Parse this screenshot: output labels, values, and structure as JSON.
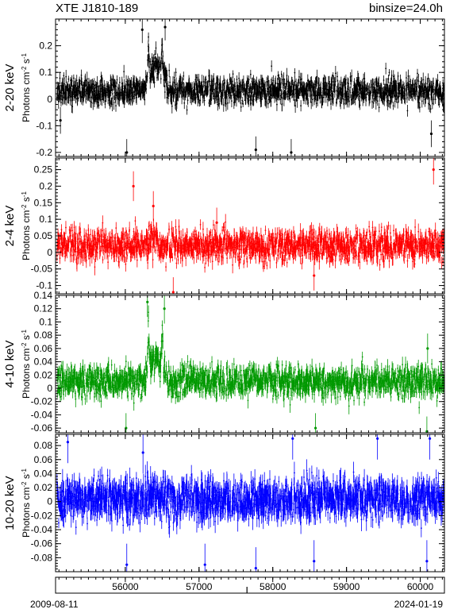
{
  "header": {
    "title": "XTE J1810-189",
    "binsize": "binsize=24.0h"
  },
  "footer": {
    "start_date": "2009-08-11",
    "end_date": "2024-01-19"
  },
  "chart_data": [
    {
      "type": "scatter",
      "band": "2-20 keV",
      "ylabel": "Photons cm^-2 s^-1",
      "color": "#000000",
      "xlim": [
        55054,
        60328
      ],
      "ylim": [
        -0.215,
        0.3
      ],
      "yticks": [
        -0.2,
        -0.1,
        0,
        0.1,
        0.2
      ],
      "ytick_labels": [
        "-0.2",
        "-0.1",
        "0",
        "0.1",
        "0.2"
      ],
      "baseline": 0.03,
      "noise": 0.025,
      "errbar": 0.02,
      "flares": [
        {
          "x": [
            56280,
            56560
          ],
          "level": 0.14
        },
        {
          "x": [
            56300,
            56330
          ],
          "level": 0.22
        },
        {
          "x": [
            56480,
            56520
          ],
          "level": 0.2
        }
      ],
      "outliers": [
        {
          "x": 55120,
          "y": -0.08
        },
        {
          "x": 56020,
          "y": -0.2
        },
        {
          "x": 57770,
          "y": -0.19
        },
        {
          "x": 58250,
          "y": -0.2
        },
        {
          "x": 56230,
          "y": 0.26
        },
        {
          "x": 56540,
          "y": 0.27
        },
        {
          "x": 60150,
          "y": -0.13
        }
      ],
      "seed": 11
    },
    {
      "type": "scatter",
      "band": "2-4 keV",
      "ylabel": "Photons cm^-2 s^-1",
      "color": "#ff0000",
      "xlim": [
        55054,
        60328
      ],
      "ylim": [
        -0.125,
        0.285
      ],
      "yticks": [
        -0.1,
        -0.05,
        0,
        0.05,
        0.1,
        0.15,
        0.2,
        0.25
      ],
      "ytick_labels": [
        "-0.1",
        "-0.05",
        "0",
        "0.05",
        "0.1",
        "0.15",
        "0.2",
        "0.25"
      ],
      "baseline": 0.02,
      "noise": 0.022,
      "errbar": 0.018,
      "flares": [
        {
          "x": [
            56250,
            56450
          ],
          "level": 0.04
        }
      ],
      "outliers": [
        {
          "x": 56110,
          "y": 0.2
        },
        {
          "x": 56650,
          "y": -0.12
        },
        {
          "x": 58560,
          "y": -0.07
        },
        {
          "x": 60180,
          "y": 0.25
        },
        {
          "x": 56380,
          "y": 0.14
        },
        {
          "x": 57240,
          "y": 0.09
        }
      ],
      "seed": 23
    },
    {
      "type": "scatter",
      "band": "4-10 keV",
      "ylabel": "Photons cm^-2 s^-1",
      "color": "#009900",
      "xlim": [
        55054,
        60328
      ],
      "ylim": [
        -0.067,
        0.14
      ],
      "yticks": [
        -0.06,
        -0.04,
        -0.02,
        0,
        0.02,
        0.04,
        0.06,
        0.08,
        0.1,
        0.12,
        0.14
      ],
      "ytick_labels": [
        "-0.06",
        "-0.04",
        "-0.02",
        "0",
        "0.02",
        "0.04",
        "0.06",
        "0.08",
        "0.1",
        "0.12",
        "0.14"
      ],
      "baseline": 0.01,
      "noise": 0.011,
      "errbar": 0.009,
      "flares": [
        {
          "x": [
            56280,
            56560
          ],
          "level": 0.045
        },
        {
          "x": [
            56300,
            56330
          ],
          "level": 0.1
        },
        {
          "x": [
            56480,
            56520
          ],
          "level": 0.08
        }
      ],
      "outliers": [
        {
          "x": 56010,
          "y": -0.06
        },
        {
          "x": 56300,
          "y": 0.13
        },
        {
          "x": 56530,
          "y": 0.12
        },
        {
          "x": 58580,
          "y": -0.06
        },
        {
          "x": 60090,
          "y": -0.065
        },
        {
          "x": 60100,
          "y": 0.06
        }
      ],
      "seed": 37
    },
    {
      "type": "scatter",
      "band": "10-20 keV",
      "ylabel": "Photons cm^-2 s^-1",
      "color": "#0000ff",
      "xlim": [
        55054,
        60328
      ],
      "ylim": [
        -0.1,
        0.096
      ],
      "yticks": [
        -0.08,
        -0.06,
        -0.04,
        -0.02,
        0,
        0.02,
        0.04,
        0.06,
        0.08
      ],
      "ytick_labels": [
        "-0.08",
        "-0.06",
        "-0.04",
        "-0.02",
        "0",
        "0.02",
        "0.04",
        "0.06",
        "0.08"
      ],
      "baseline": 0.003,
      "noise": 0.014,
      "errbar": 0.012,
      "flares": [
        {
          "x": [
            56300,
            56500
          ],
          "level": 0.012
        }
      ],
      "outliers": [
        {
          "x": 55220,
          "y": 0.085
        },
        {
          "x": 56020,
          "y": -0.09
        },
        {
          "x": 57080,
          "y": -0.09
        },
        {
          "x": 57770,
          "y": -0.095
        },
        {
          "x": 58270,
          "y": 0.09
        },
        {
          "x": 58560,
          "y": -0.085
        },
        {
          "x": 59420,
          "y": 0.09
        },
        {
          "x": 60090,
          "y": -0.085
        },
        {
          "x": 60130,
          "y": 0.09
        },
        {
          "x": 56240,
          "y": 0.07
        }
      ],
      "seed": 53
    }
  ],
  "time_axis": {
    "xlim": [
      55054,
      60328
    ],
    "ticks": [
      56000,
      57000,
      58000,
      59000,
      60000
    ],
    "tick_labels": [
      "56000",
      "57000",
      "58000",
      "59000",
      "60000"
    ],
    "marker": 57650
  }
}
